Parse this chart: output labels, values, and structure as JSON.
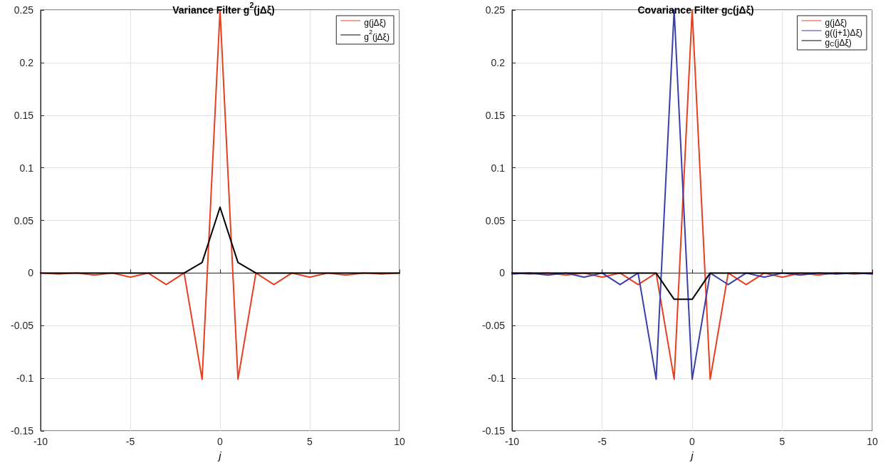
{
  "chart_data": [
    {
      "type": "line",
      "title": "Variance Filter g$^{2}$(jΔξ)",
      "xlabel": "j",
      "x": [
        -10,
        -9,
        -8,
        -7,
        -6,
        -5,
        -4,
        -3,
        -2,
        -1,
        0,
        1,
        2,
        3,
        4,
        5,
        6,
        7,
        8,
        9,
        10
      ],
      "series": [
        {
          "name": "g(jΔξ)",
          "color": "#e5401f",
          "values": [
            0,
            -0.001,
            0,
            -0.002,
            0,
            -0.004,
            0,
            -0.011,
            0,
            -0.101,
            0.25,
            -0.101,
            0,
            -0.011,
            0,
            -0.004,
            0,
            -0.002,
            0,
            -0.001,
            0
          ]
        },
        {
          "name": "g$^{2}$(jΔξ)",
          "color": "#000000",
          "values": [
            0,
            0,
            0,
            0,
            0,
            0,
            0,
            0,
            0,
            0.01,
            0.0625,
            0.01,
            0,
            0,
            0,
            0,
            0,
            0,
            0,
            0,
            0
          ]
        }
      ],
      "xlim": [
        -10,
        10
      ],
      "xticks": [
        -10,
        -5,
        0,
        5,
        10
      ],
      "ylim": [
        -0.15,
        0.25
      ],
      "yticks": [
        -0.15,
        -0.1,
        -0.05,
        0,
        0.05,
        0.1,
        0.15,
        0.2,
        0.25
      ],
      "grid": true,
      "legend": "top right",
      "marker": "none",
      "line_style": "solid"
    },
    {
      "type": "line",
      "title": "Covariance Filter g$_{C}$(jΔξ)",
      "xlabel": "j",
      "x": [
        -10,
        -9,
        -8,
        -7,
        -6,
        -5,
        -4,
        -3,
        -2,
        -1,
        0,
        1,
        2,
        3,
        4,
        5,
        6,
        7,
        8,
        9,
        10
      ],
      "series": [
        {
          "name": "g(jΔξ)",
          "color": "#e5401f",
          "values": [
            0,
            -0.001,
            0,
            -0.002,
            0,
            -0.004,
            0,
            -0.011,
            0,
            -0.101,
            0.25,
            -0.101,
            0,
            -0.011,
            0,
            -0.004,
            0,
            -0.002,
            0,
            -0.001,
            0
          ]
        },
        {
          "name": "g((j+1)Δξ)",
          "color": "#3b3fa8",
          "values": [
            -0.001,
            0,
            -0.002,
            0,
            -0.004,
            0,
            -0.011,
            0,
            -0.101,
            0.25,
            -0.101,
            0,
            -0.011,
            0,
            -0.004,
            0,
            -0.002,
            0,
            -0.001,
            0,
            -0.001
          ]
        },
        {
          "name": "g$_{C}$(jΔξ)",
          "color": "#000000",
          "values": [
            0,
            0,
            0,
            0,
            0,
            0,
            0,
            0,
            0,
            -0.025,
            -0.025,
            0,
            0,
            0,
            0,
            0,
            0,
            0,
            0,
            0,
            0
          ]
        }
      ],
      "xlim": [
        -10,
        10
      ],
      "xticks": [
        -10,
        -5,
        0,
        5,
        10
      ],
      "ylim": [
        -0.15,
        0.25
      ],
      "yticks": [
        -0.15,
        -0.1,
        -0.05,
        0,
        0.05,
        0.1,
        0.15,
        0.2,
        0.25
      ],
      "grid": true,
      "legend": "top right",
      "marker": "none",
      "line_style": "solid"
    }
  ]
}
